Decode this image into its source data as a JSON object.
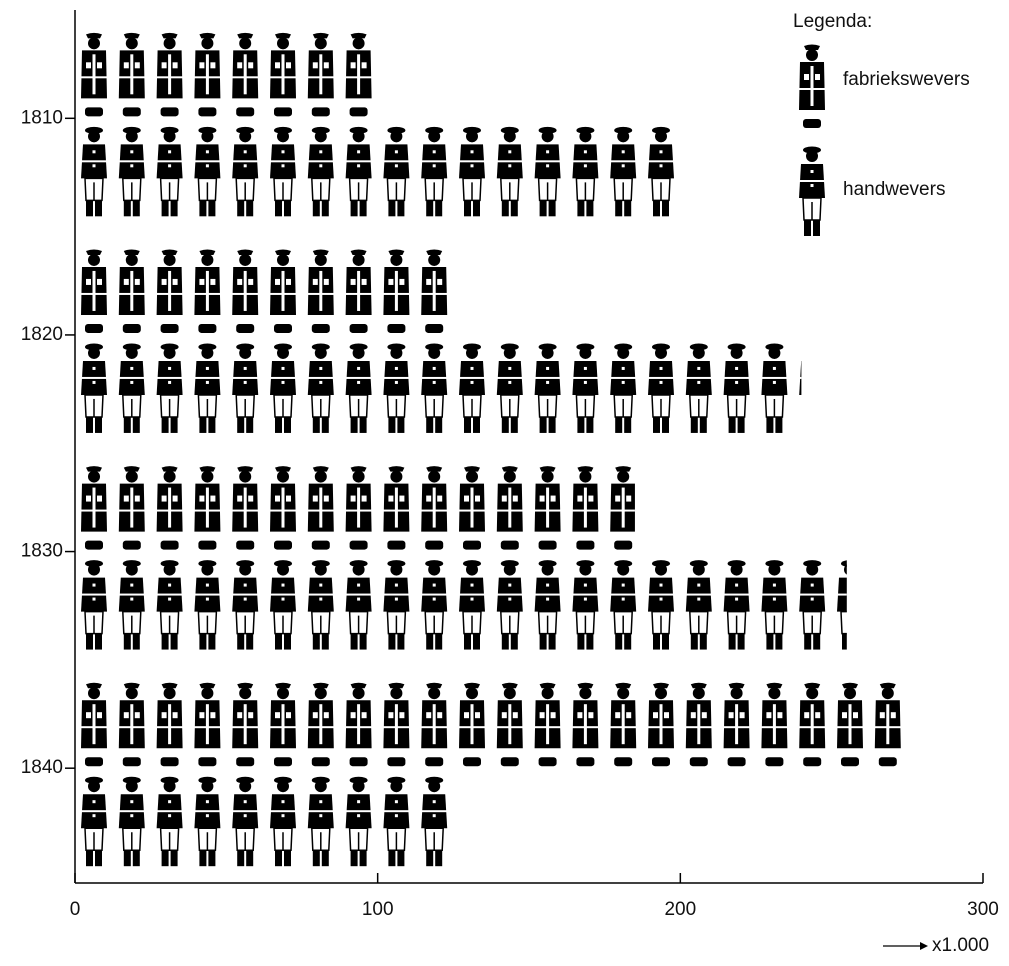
{
  "chart_data": {
    "type": "pictograph",
    "categories": [
      "1810",
      "1820",
      "1830",
      "1840"
    ],
    "series": [
      {
        "name": "fabriekswevers",
        "color": "#000000",
        "values": [
          100,
          125,
          185,
          275
        ]
      },
      {
        "name": "handwevers",
        "color": "#000000",
        "values": [
          200,
          240,
          255,
          125
        ]
      }
    ],
    "legend_title": "Legenda:",
    "x_label": "x1.000",
    "xlim": [
      0,
      300
    ],
    "xticks": [
      0,
      100,
      200,
      300
    ]
  }
}
